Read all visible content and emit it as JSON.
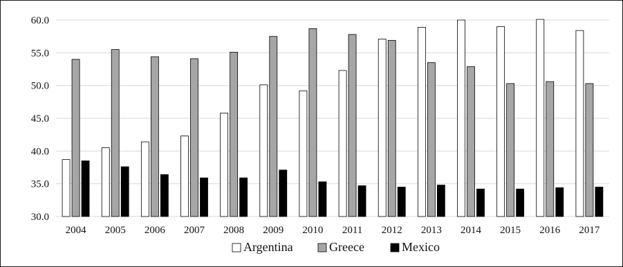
{
  "chart_data": {
    "type": "bar",
    "title": "",
    "xlabel": "",
    "ylabel": "",
    "categories": [
      "2004",
      "2005",
      "2006",
      "2007",
      "2008",
      "2009",
      "2010",
      "2011",
      "2012",
      "2013",
      "2014",
      "2015",
      "2016",
      "2017"
    ],
    "series": [
      {
        "name": "Argentina",
        "color": "#ffffff",
        "values": [
          38.7,
          40.5,
          41.4,
          42.3,
          45.8,
          50.1,
          49.2,
          52.3,
          57.1,
          58.9,
          60.0,
          59.0,
          60.1,
          58.4
        ]
      },
      {
        "name": "Greece",
        "color": "#a6a6a6",
        "values": [
          54.0,
          55.5,
          54.4,
          54.1,
          55.1,
          57.5,
          58.7,
          57.8,
          56.9,
          53.5,
          52.9,
          50.3,
          50.6,
          50.3
        ]
      },
      {
        "name": "Mexico",
        "color": "#000000",
        "values": [
          38.5,
          37.6,
          36.4,
          35.9,
          35.9,
          37.1,
          35.3,
          34.7,
          34.5,
          34.8,
          34.2,
          34.2,
          34.4,
          34.5
        ]
      }
    ],
    "ylim": [
      30,
      60
    ],
    "yticks": [
      "30.0",
      "35.0",
      "40.0",
      "45.0",
      "50.0",
      "55.0",
      "60.0"
    ],
    "grid": true,
    "legend_position": "bottom"
  }
}
